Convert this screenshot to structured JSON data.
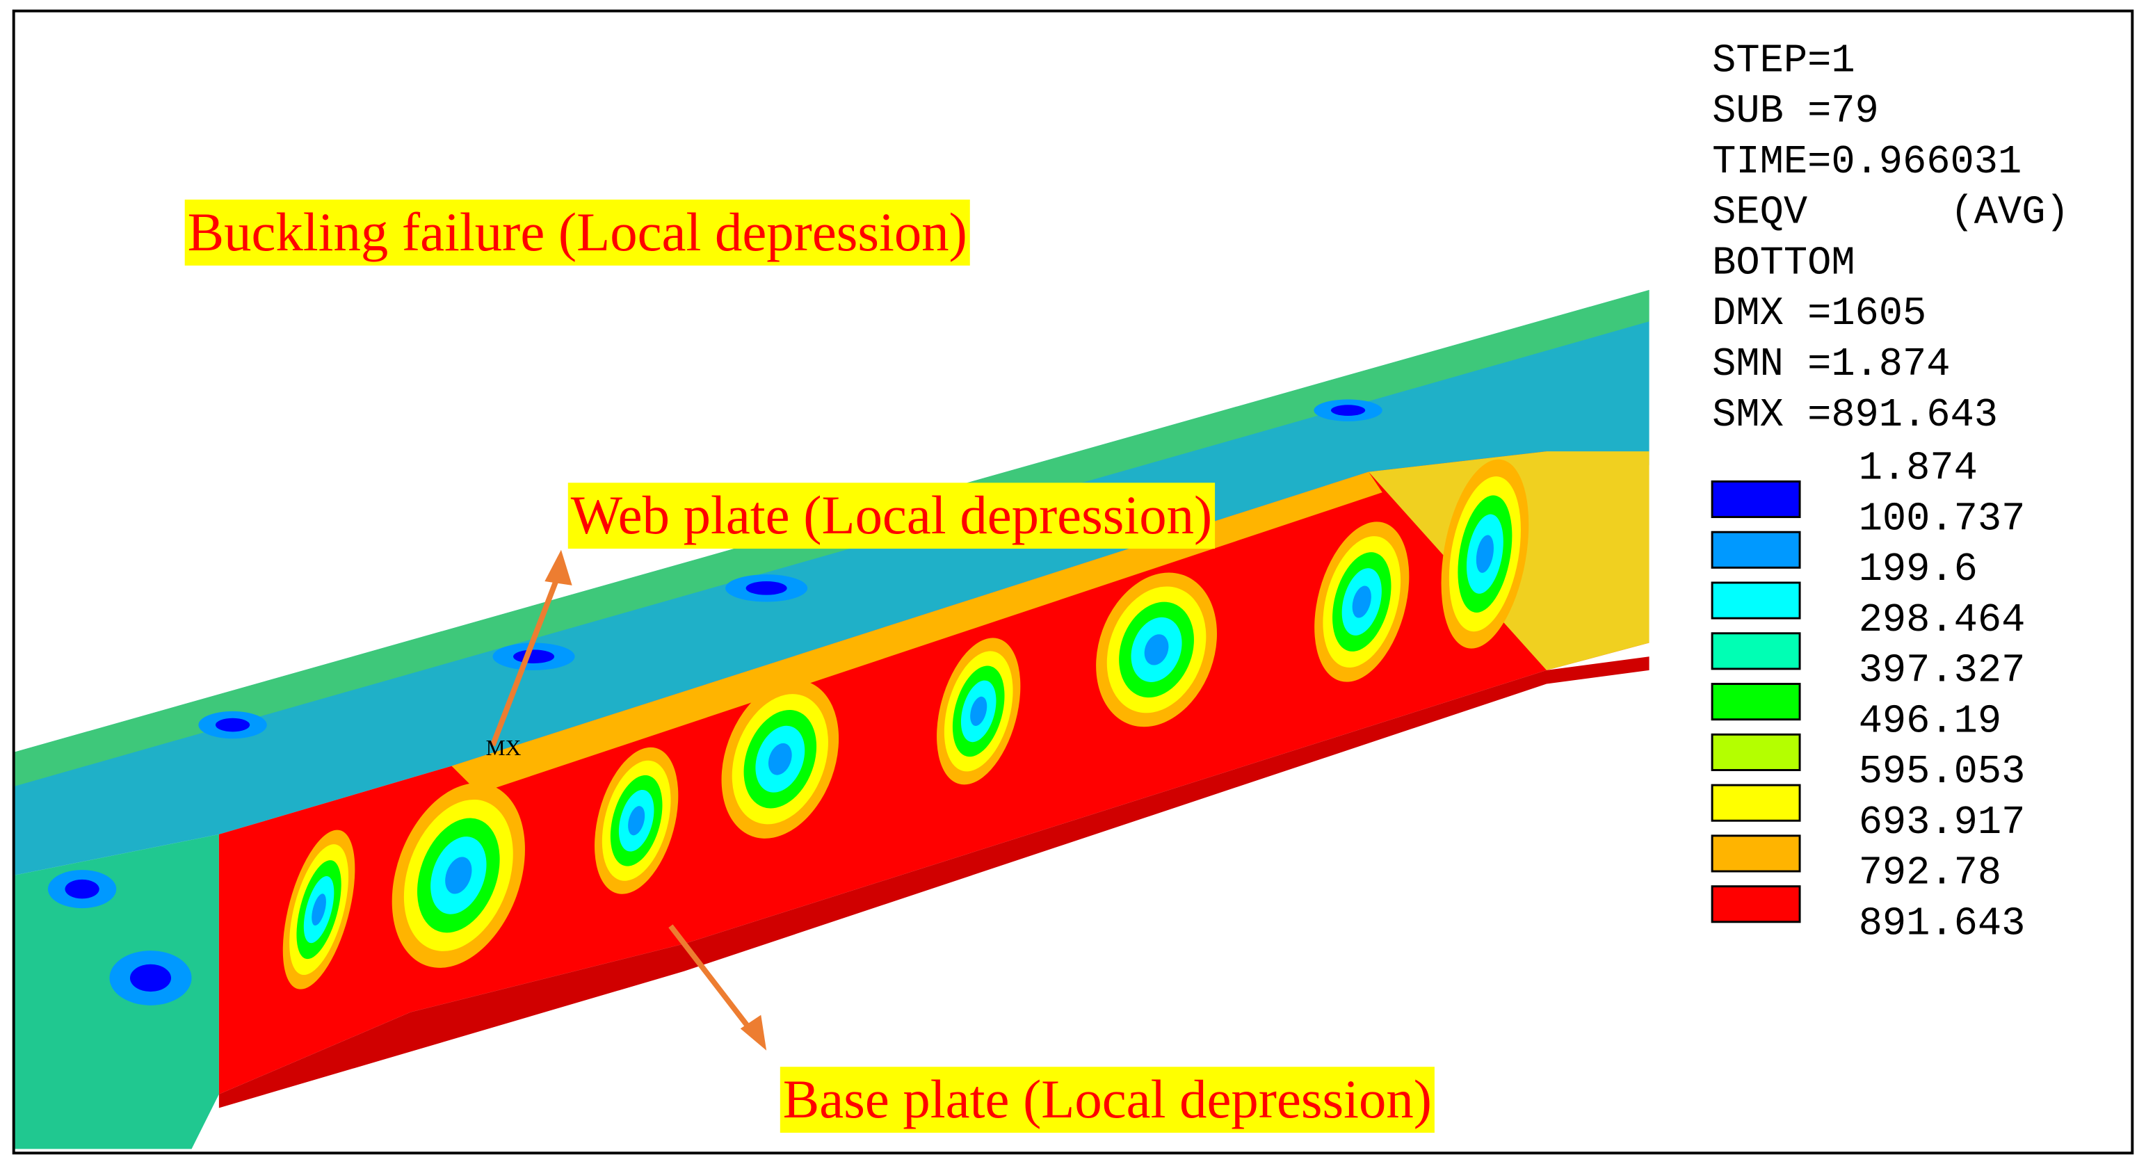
{
  "annotations": [
    {
      "text": "Buckling failure (Local depression)"
    },
    {
      "text": "Web plate (Local depression)"
    },
    {
      "text": "Base plate (Local depression)"
    }
  ],
  "node_label": "MX",
  "legend": {
    "info": [
      "STEP=1",
      "SUB =79",
      "TIME=0.966031",
      "SEQV      (AVG)",
      "BOTTOM",
      "DMX =1605",
      "SMN =1.874",
      "SMX =891.643"
    ],
    "levels": [
      "1.874",
      "100.737",
      "199.6",
      "298.464",
      "397.327",
      "496.19",
      "595.053",
      "693.917",
      "792.78",
      "891.643"
    ],
    "colors": [
      "#0000ff",
      "#0099ff",
      "#00ffff",
      "#00ffb4",
      "#00ff00",
      "#b4ff00",
      "#ffff00",
      "#ffb400",
      "#ff0000"
    ]
  }
}
